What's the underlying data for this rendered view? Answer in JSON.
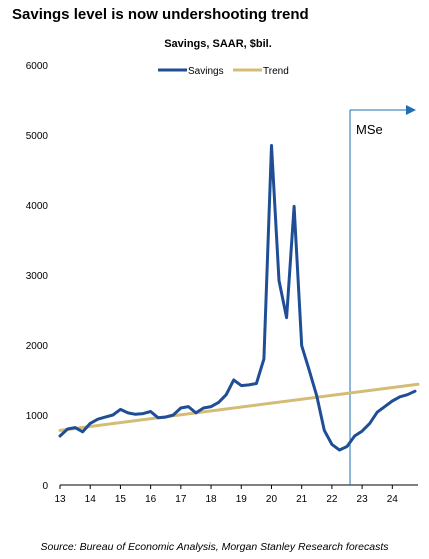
{
  "title": "Savings level is now undershooting trend",
  "source": "Source: Bureau of Economic Analysis, Morgan Stanley Research forecasts",
  "chart_data": {
    "type": "line",
    "subtitle": "Savings, SAAR, $bil.",
    "legend_position": "top-center",
    "grid": false,
    "xlim": [
      2013,
      2024.85
    ],
    "ylim": [
      0,
      6000
    ],
    "x_ticks": [
      {
        "value": 2013,
        "label": "13"
      },
      {
        "value": 2014,
        "label": "14"
      },
      {
        "value": 2015,
        "label": "15"
      },
      {
        "value": 2016,
        "label": "16"
      },
      {
        "value": 2017,
        "label": "17"
      },
      {
        "value": 2018,
        "label": "18"
      },
      {
        "value": 2019,
        "label": "19"
      },
      {
        "value": 2020,
        "label": "20"
      },
      {
        "value": 2021,
        "label": "21"
      },
      {
        "value": 2022,
        "label": "22"
      },
      {
        "value": 2023,
        "label": "23"
      },
      {
        "value": 2024,
        "label": "24"
      }
    ],
    "y_ticks": [
      0,
      1000,
      2000,
      3000,
      4000,
      5000,
      6000
    ],
    "series": [
      {
        "name": "Savings",
        "color": "#1f4e96",
        "x": [
          2013.0,
          2013.25,
          2013.5,
          2013.75,
          2014.0,
          2014.25,
          2014.5,
          2014.75,
          2015.0,
          2015.25,
          2015.5,
          2015.75,
          2016.0,
          2016.25,
          2016.5,
          2016.75,
          2017.0,
          2017.25,
          2017.5,
          2017.75,
          2018.0,
          2018.25,
          2018.5,
          2018.75,
          2019.0,
          2019.25,
          2019.5,
          2019.75,
          2020.0,
          2020.25,
          2020.5,
          2020.75,
          2021.0,
          2021.25,
          2021.5,
          2021.75,
          2022.0,
          2022.25,
          2022.5,
          2022.75,
          2023.0,
          2023.25,
          2023.5,
          2023.75,
          2024.0,
          2024.25,
          2024.5,
          2024.75
        ],
        "values": [
          700,
          800,
          820,
          760,
          880,
          940,
          970,
          1000,
          1080,
          1030,
          1010,
          1020,
          1050,
          960,
          970,
          1000,
          1100,
          1120,
          1030,
          1100,
          1120,
          1180,
          1290,
          1500,
          1420,
          1430,
          1450,
          1800,
          4850,
          2920,
          2390,
          3980,
          1990,
          1640,
          1270,
          780,
          580,
          500,
          550,
          700,
          770,
          880,
          1040,
          1120,
          1200,
          1260,
          1290,
          1340
        ]
      },
      {
        "name": "Trend",
        "color": "#d4bc77",
        "x": [
          2013.0,
          2024.85
        ],
        "values": [
          780,
          1440
        ]
      }
    ],
    "forecast_marker": {
      "x": 2022.6,
      "label": "MSe"
    }
  }
}
